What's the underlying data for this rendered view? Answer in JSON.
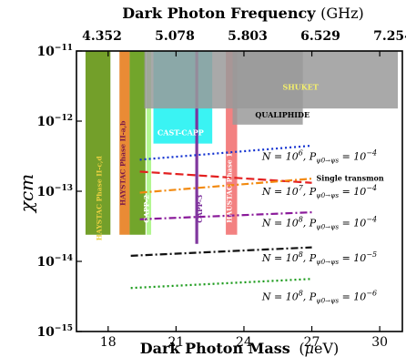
{
  "chart_data": {
    "type": "line",
    "top_axis": {
      "label_bold": "Dark Photon Frequency",
      "label_unit": "(GHz)",
      "ticks": [
        "4.352",
        "5.078",
        "5.803",
        "6.529",
        "7.254"
      ]
    },
    "xlabel_bold": "Dark Photon Mass",
    "xlabel_unit_open": "(",
    "xlabel_mu": "μ",
    "xlabel_unit_close": "eV)",
    "ylabel": "χcm",
    "y_log_scale": true,
    "xlim": [
      16.6,
      31.0
    ],
    "ylim_exp": [
      -15,
      -11
    ],
    "x_ticks": [
      {
        "value": 18,
        "label": "18"
      },
      {
        "value": 21,
        "label": "21"
      },
      {
        "value": 24,
        "label": "24"
      },
      {
        "value": 27,
        "label": "27"
      },
      {
        "value": 30,
        "label": "30"
      }
    ],
    "y_ticks": [
      {
        "exp": -11,
        "base": "10",
        "sup": "−11"
      },
      {
        "exp": -12,
        "base": "10",
        "sup": "−12"
      },
      {
        "exp": -13,
        "base": "10",
        "sup": "−13"
      },
      {
        "exp": -14,
        "base": "10",
        "sup": "−14"
      },
      {
        "exp": -15,
        "base": "10",
        "sup": "−15"
      }
    ],
    "excluded_regions": [
      {
        "name": "HAYSTAC Phase II-c,d",
        "color": "#6b9a1f",
        "text_color": "#e8d040",
        "x_start": 17.0,
        "x_end": 18.1,
        "y_exp_bottom": -13.62,
        "label_x": 17.7,
        "label_y_exp": -13.1
      },
      {
        "name": "HAYSTAC Phase II-a,b",
        "color": "#e8852a",
        "text_color": "#7a1a4a",
        "x_start": 18.5,
        "x_end": 18.95,
        "y_exp_bottom": -13.62,
        "label_x": 18.75,
        "label_y_exp": -12.6
      },
      {
        "name": "green band",
        "color": "#6aa020",
        "x_start": 18.95,
        "x_end": 19.65,
        "y_exp_bottom": -13.62
      },
      {
        "name": "CAPP-2",
        "color": "#aef58a",
        "text_color": "#ffffff",
        "x_start": 19.7,
        "x_end": 19.9,
        "y_exp_bottom": -13.62,
        "label_x": 19.8,
        "label_y_exp": -13.25
      },
      {
        "name": "CAST-CAPP",
        "color": "#2ff2f2",
        "text_color": "#ffffff",
        "x_start": 20.0,
        "x_end": 22.6,
        "y_exp_bottom": -12.32,
        "label_x": 21.2,
        "label_y_exp": -12.2
      },
      {
        "name": "CAPP-3",
        "color": "#7a2d9a",
        "text_color": "#7a2d9a",
        "x_start": 21.85,
        "x_end": 21.98,
        "y_exp_bottom": -13.75,
        "label_x": 22.15,
        "label_y_exp": -13.25
      },
      {
        "name": "HAUSTAC Phase 1",
        "color": "#f27a7a",
        "text_color": "#ffffff",
        "x_start": 23.2,
        "x_end": 23.7,
        "y_exp_bottom": -13.62,
        "label_x": 23.45,
        "label_y_exp": -12.95
      },
      {
        "name": "SHUKET",
        "color": "#9a9a9a",
        "text_color": "#f5f06a",
        "x_start": 19.6,
        "x_end": 30.8,
        "y_exp_bottom": -11.82,
        "label_x": 26.5,
        "label_y_exp": -11.55
      },
      {
        "name": "QUALIPHIDE",
        "color": "#9a9a9a",
        "text_color": "#000000",
        "x_start": 23.5,
        "x_end": 26.6,
        "y_exp_bottom": -12.05,
        "label_x": 25.7,
        "label_y_exp": -11.95
      }
    ],
    "projection_lines": [
      {
        "name": "Single transmon",
        "color": "#e32020",
        "dash": "9,4",
        "x": [
          19.4,
          27.0
        ],
        "y_exp": [
          -12.72,
          -12.88
        ],
        "label": "Single transmon",
        "label_x": 27.2,
        "label_y_exp": -12.85
      },
      {
        "name": "blue dotted",
        "color": "#1030d0",
        "dash": "2,3",
        "x": [
          19.4,
          27.0
        ],
        "y_exp": [
          -12.55,
          -12.35
        ]
      },
      {
        "name": "orange dashdot",
        "color": "#f28a10",
        "dash": "8,3,2,3",
        "x": [
          19.4,
          27.0
        ],
        "y_exp": [
          -13.02,
          -12.82
        ]
      },
      {
        "name": "purple dashdot",
        "color": "#8a1a9a",
        "dash": "8,3,2,3",
        "x": [
          19.4,
          27.0
        ],
        "y_exp": [
          -13.4,
          -13.3
        ]
      },
      {
        "name": "black dashdot",
        "color": "#111111",
        "dash": "8,3,2,3",
        "x": [
          19.0,
          27.0
        ],
        "y_exp": [
          -13.92,
          -13.8
        ]
      },
      {
        "name": "green dotted",
        "color": "#1a9a1a",
        "dash": "2,3",
        "x": [
          19.0,
          27.0
        ],
        "y_exp": [
          -14.38,
          -14.25
        ]
      }
    ],
    "annotations": [
      {
        "text_N": "N = 10",
        "exp_N": "6",
        "text_P": ", P",
        "sub": "ψ0→ψs",
        "text_eq": " = 10",
        "exp_val": "−4",
        "x": 24.8,
        "y_exp": -12.55
      },
      {
        "text_N": "N = 10",
        "exp_N": "7",
        "text_P": ", P",
        "sub": "ψ0→ψs",
        "text_eq": " = 10",
        "exp_val": "−4",
        "x": 24.8,
        "y_exp": -13.05
      },
      {
        "text_N": "N = 10",
        "exp_N": "8",
        "text_P": ", P",
        "sub": "ψ0→ψs",
        "text_eq": " = 10",
        "exp_val": "−4",
        "x": 24.8,
        "y_exp": -13.5
      },
      {
        "text_N": "N = 10",
        "exp_N": "8",
        "text_P": ", P",
        "sub": "ψ0→ψs",
        "text_eq": " = 10",
        "exp_val": "−5",
        "x": 24.8,
        "y_exp": -14.0
      },
      {
        "text_N": "N = 10",
        "exp_N": "8",
        "text_P": ", P",
        "sub": "ψ0→ψs",
        "text_eq": " = 10",
        "exp_val": "−6",
        "x": 24.8,
        "y_exp": -14.55
      }
    ]
  }
}
